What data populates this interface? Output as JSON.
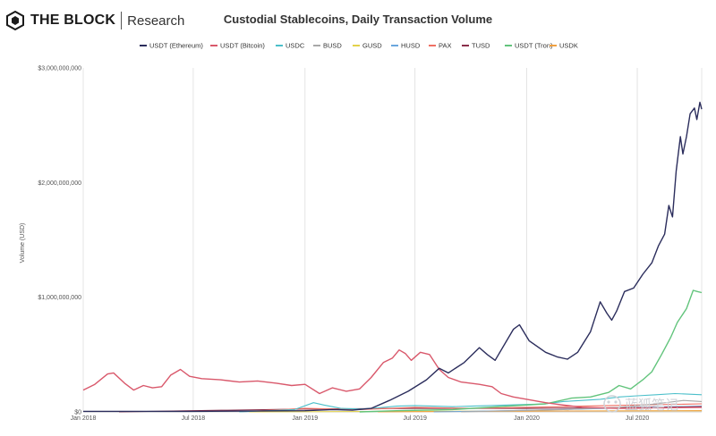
{
  "brand": {
    "name": "THE BLOCK",
    "sub": "Research"
  },
  "watermark": "蓝狐笔记",
  "chart_data": {
    "type": "line",
    "title": "Custodial Stablecoins, Daily Transaction Volume",
    "ylabel": "Volume (USD)",
    "xlabel": "",
    "ylim": [
      0,
      3000000000
    ],
    "yticks": [
      0,
      1000000000,
      2000000000,
      3000000000
    ],
    "ytick_labels": [
      "$0",
      "$1,000,000,000",
      "$2,000,000,000",
      "$3,000,000,000"
    ],
    "xlim": [
      "2018-01-01",
      "2020-10-15"
    ],
    "xticks": [
      "2018-01-01",
      "2018-07-01",
      "2019-01-01",
      "2019-07-01",
      "2020-01-01",
      "2020-07-01"
    ],
    "xtick_labels": [
      "Jan 2018",
      "Jul 2018",
      "Jan 2019",
      "Jul 2019",
      "Jan 2020",
      "Jul 2020"
    ],
    "grid": "vertical",
    "legend": "top",
    "series": [
      {
        "name": "USDT (Ethereum)",
        "color": "#2b2d5c",
        "points": [
          [
            "2018-01-01",
            5000000
          ],
          [
            "2018-07-01",
            5000000
          ],
          [
            "2019-01-01",
            10000000
          ],
          [
            "2019-02-15",
            20000000
          ],
          [
            "2019-03-20",
            15000000
          ],
          [
            "2019-04-20",
            30000000
          ],
          [
            "2019-05-20",
            100000000
          ],
          [
            "2019-06-20",
            180000000
          ],
          [
            "2019-07-20",
            280000000
          ],
          [
            "2019-08-10",
            380000000
          ],
          [
            "2019-08-25",
            340000000
          ],
          [
            "2019-09-20",
            430000000
          ],
          [
            "2019-10-15",
            560000000
          ],
          [
            "2019-10-28",
            500000000
          ],
          [
            "2019-11-10",
            450000000
          ],
          [
            "2019-12-10",
            720000000
          ],
          [
            "2019-12-20",
            760000000
          ],
          [
            "2020-01-05",
            620000000
          ],
          [
            "2020-02-01",
            520000000
          ],
          [
            "2020-02-20",
            480000000
          ],
          [
            "2020-03-08",
            460000000
          ],
          [
            "2020-03-25",
            520000000
          ],
          [
            "2020-04-15",
            700000000
          ],
          [
            "2020-05-01",
            960000000
          ],
          [
            "2020-05-12",
            860000000
          ],
          [
            "2020-05-20",
            800000000
          ],
          [
            "2020-05-28",
            880000000
          ],
          [
            "2020-06-10",
            1050000000
          ],
          [
            "2020-06-25",
            1080000000
          ],
          [
            "2020-07-10",
            1200000000
          ],
          [
            "2020-07-25",
            1300000000
          ],
          [
            "2020-08-05",
            1450000000
          ],
          [
            "2020-08-15",
            1550000000
          ],
          [
            "2020-08-22",
            1800000000
          ],
          [
            "2020-08-28",
            1700000000
          ],
          [
            "2020-09-03",
            2100000000
          ],
          [
            "2020-09-10",
            2400000000
          ],
          [
            "2020-09-14",
            2250000000
          ],
          [
            "2020-09-20",
            2400000000
          ],
          [
            "2020-09-26",
            2600000000
          ],
          [
            "2020-10-03",
            2650000000
          ],
          [
            "2020-10-07",
            2550000000
          ],
          [
            "2020-10-12",
            2700000000
          ],
          [
            "2020-10-15",
            2640000000
          ]
        ]
      },
      {
        "name": "USDT (Bitcoin)",
        "color": "#d9586b",
        "points": [
          [
            "2018-01-01",
            190000000
          ],
          [
            "2018-01-20",
            240000000
          ],
          [
            "2018-02-10",
            330000000
          ],
          [
            "2018-02-20",
            340000000
          ],
          [
            "2018-03-10",
            250000000
          ],
          [
            "2018-03-25",
            190000000
          ],
          [
            "2018-04-10",
            230000000
          ],
          [
            "2018-04-25",
            210000000
          ],
          [
            "2018-05-10",
            220000000
          ],
          [
            "2018-05-25",
            320000000
          ],
          [
            "2018-06-10",
            370000000
          ],
          [
            "2018-06-25",
            310000000
          ],
          [
            "2018-07-15",
            290000000
          ],
          [
            "2018-08-15",
            280000000
          ],
          [
            "2018-09-15",
            260000000
          ],
          [
            "2018-10-15",
            270000000
          ],
          [
            "2018-11-15",
            250000000
          ],
          [
            "2018-12-10",
            230000000
          ],
          [
            "2019-01-01",
            240000000
          ],
          [
            "2019-01-25",
            160000000
          ],
          [
            "2019-02-15",
            210000000
          ],
          [
            "2019-03-10",
            180000000
          ],
          [
            "2019-04-01",
            200000000
          ],
          [
            "2019-04-20",
            300000000
          ],
          [
            "2019-05-10",
            430000000
          ],
          [
            "2019-05-25",
            470000000
          ],
          [
            "2019-06-05",
            540000000
          ],
          [
            "2019-06-15",
            510000000
          ],
          [
            "2019-06-25",
            450000000
          ],
          [
            "2019-07-10",
            520000000
          ],
          [
            "2019-07-25",
            500000000
          ],
          [
            "2019-08-10",
            370000000
          ],
          [
            "2019-08-25",
            300000000
          ],
          [
            "2019-09-15",
            260000000
          ],
          [
            "2019-10-15",
            240000000
          ],
          [
            "2019-11-05",
            220000000
          ],
          [
            "2019-11-20",
            160000000
          ],
          [
            "2019-12-10",
            130000000
          ],
          [
            "2020-01-01",
            110000000
          ],
          [
            "2020-02-01",
            80000000
          ],
          [
            "2020-03-01",
            60000000
          ],
          [
            "2020-04-01",
            40000000
          ],
          [
            "2020-06-01",
            30000000
          ],
          [
            "2020-10-15",
            40000000
          ]
        ]
      },
      {
        "name": "USDC",
        "color": "#4bbfca",
        "points": [
          [
            "2018-09-15",
            0
          ],
          [
            "2018-12-15",
            20000000
          ],
          [
            "2019-01-15",
            80000000
          ],
          [
            "2019-02-01",
            60000000
          ],
          [
            "2019-03-01",
            30000000
          ],
          [
            "2019-04-01",
            25000000
          ],
          [
            "2019-05-01",
            35000000
          ],
          [
            "2019-06-01",
            50000000
          ],
          [
            "2019-07-01",
            55000000
          ],
          [
            "2019-08-01",
            50000000
          ],
          [
            "2019-09-01",
            45000000
          ],
          [
            "2019-10-01",
            50000000
          ],
          [
            "2019-11-01",
            55000000
          ],
          [
            "2019-12-01",
            60000000
          ],
          [
            "2020-01-01",
            65000000
          ],
          [
            "2020-02-01",
            70000000
          ],
          [
            "2020-03-01",
            90000000
          ],
          [
            "2020-04-01",
            100000000
          ],
          [
            "2020-05-01",
            110000000
          ],
          [
            "2020-06-01",
            130000000
          ],
          [
            "2020-07-01",
            140000000
          ],
          [
            "2020-08-01",
            150000000
          ],
          [
            "2020-09-01",
            160000000
          ],
          [
            "2020-10-15",
            150000000
          ]
        ]
      },
      {
        "name": "BUSD",
        "color": "#a8a8a8",
        "points": [
          [
            "2019-09-15",
            0
          ],
          [
            "2019-12-01",
            10000000
          ],
          [
            "2020-03-01",
            20000000
          ],
          [
            "2020-06-01",
            40000000
          ],
          [
            "2020-08-01",
            70000000
          ],
          [
            "2020-09-15",
            100000000
          ],
          [
            "2020-10-15",
            90000000
          ]
        ]
      },
      {
        "name": "GUSD",
        "color": "#e3d24a",
        "points": [
          [
            "2018-10-01",
            0
          ],
          [
            "2019-06-01",
            5000000
          ],
          [
            "2020-03-01",
            8000000
          ],
          [
            "2020-10-15",
            10000000
          ]
        ]
      },
      {
        "name": "HUSD",
        "color": "#6aa6dd",
        "points": [
          [
            "2019-08-01",
            0
          ],
          [
            "2019-12-01",
            10000000
          ],
          [
            "2020-04-01",
            25000000
          ],
          [
            "2020-07-01",
            40000000
          ],
          [
            "2020-10-15",
            50000000
          ]
        ]
      },
      {
        "name": "PAX",
        "color": "#ef6f63",
        "points": [
          [
            "2018-09-15",
            0
          ],
          [
            "2019-01-01",
            30000000
          ],
          [
            "2019-04-01",
            20000000
          ],
          [
            "2019-07-01",
            40000000
          ],
          [
            "2019-10-01",
            30000000
          ],
          [
            "2020-01-01",
            40000000
          ],
          [
            "2020-04-01",
            50000000
          ],
          [
            "2020-07-01",
            60000000
          ],
          [
            "2020-10-15",
            70000000
          ]
        ]
      },
      {
        "name": "TUSD",
        "color": "#8a2f4a",
        "points": [
          [
            "2018-03-01",
            0
          ],
          [
            "2018-07-01",
            10000000
          ],
          [
            "2019-01-01",
            25000000
          ],
          [
            "2019-07-01",
            30000000
          ],
          [
            "2020-01-01",
            30000000
          ],
          [
            "2020-05-01",
            35000000
          ],
          [
            "2020-08-01",
            40000000
          ],
          [
            "2020-10-15",
            45000000
          ]
        ]
      },
      {
        "name": "USDT (Tron)",
        "color": "#62c47c",
        "points": [
          [
            "2019-04-01",
            0
          ],
          [
            "2019-06-01",
            10000000
          ],
          [
            "2019-09-01",
            20000000
          ],
          [
            "2019-12-01",
            50000000
          ],
          [
            "2020-02-01",
            70000000
          ],
          [
            "2020-03-15",
            120000000
          ],
          [
            "2020-04-15",
            130000000
          ],
          [
            "2020-05-15",
            170000000
          ],
          [
            "2020-06-01",
            230000000
          ],
          [
            "2020-06-20",
            200000000
          ],
          [
            "2020-07-10",
            280000000
          ],
          [
            "2020-07-25",
            350000000
          ],
          [
            "2020-08-10",
            500000000
          ],
          [
            "2020-08-25",
            650000000
          ],
          [
            "2020-09-05",
            780000000
          ],
          [
            "2020-09-20",
            900000000
          ],
          [
            "2020-10-01",
            1060000000
          ],
          [
            "2020-10-08",
            1050000000
          ],
          [
            "2020-10-15",
            1040000000
          ]
        ]
      },
      {
        "name": "USDK",
        "color": "#f0a040",
        "points": [
          [
            "2019-05-01",
            0
          ],
          [
            "2019-10-01",
            5000000
          ],
          [
            "2020-03-01",
            8000000
          ],
          [
            "2020-10-15",
            10000000
          ]
        ]
      }
    ]
  }
}
